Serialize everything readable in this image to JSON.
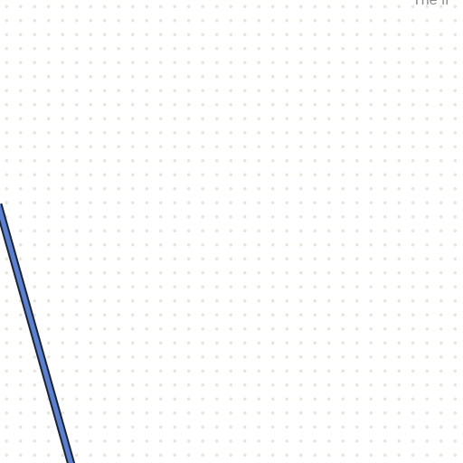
{
  "canvas": {
    "corner_text": "The fi",
    "background_color": "#ffffff",
    "grid_dot_color": "#e6e6df",
    "connector": {
      "fill_color": "#5b80d0",
      "outline_color": "#1b2437"
    }
  }
}
